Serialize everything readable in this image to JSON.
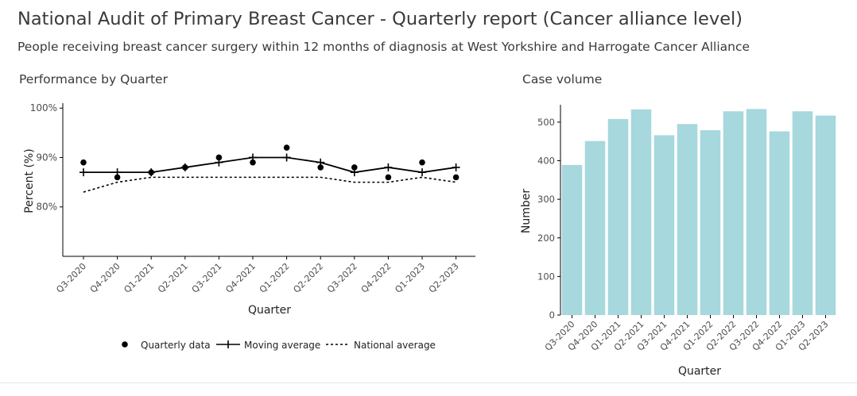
{
  "header": {
    "title": "National Audit of Primary Breast Cancer - Quarterly report (Cancer alliance level)",
    "subtitle": "People receiving breast cancer surgery within 12 months of diagnosis at West Yorkshire and Harrogate Cancer Alliance"
  },
  "colors": {
    "bar_fill": "#a6d8de",
    "line": "#000000",
    "axis": "#000000"
  },
  "chart_data": [
    {
      "type": "line",
      "title": "Performance by Quarter",
      "xlabel": "Quarter",
      "ylabel": "Percent (%)",
      "categories": [
        "Q3-2020",
        "Q4-2020",
        "Q1-2021",
        "Q2-2021",
        "Q3-2021",
        "Q4-2021",
        "Q1-2022",
        "Q2-2022",
        "Q3-2022",
        "Q4-2022",
        "Q1-2023",
        "Q2-2023"
      ],
      "ylim": [
        70,
        101
      ],
      "yticks": [
        80,
        90,
        100
      ],
      "ytick_labels": [
        "80%",
        "90%",
        "100%"
      ],
      "grid": false,
      "legend_position": "bottom",
      "series": [
        {
          "name": "Quarterly data",
          "style": "points",
          "values": [
            89,
            86,
            87,
            88,
            90,
            89,
            92,
            88,
            88,
            86,
            89,
            86
          ]
        },
        {
          "name": "Moving average",
          "style": "line-cross",
          "values": [
            87,
            87,
            87,
            88,
            89,
            90,
            90,
            89,
            87,
            88,
            87,
            88
          ]
        },
        {
          "name": "National average",
          "style": "dashed",
          "values": [
            83,
            85,
            86,
            86,
            86,
            86,
            86,
            86,
            85,
            85,
            86,
            85
          ]
        }
      ]
    },
    {
      "type": "bar",
      "title": "Case volume",
      "xlabel": "Quarter",
      "ylabel": "Number",
      "categories": [
        "Q3-2020",
        "Q4-2020",
        "Q1-2021",
        "Q2-2021",
        "Q3-2021",
        "Q4-2021",
        "Q1-2022",
        "Q2-2022",
        "Q3-2022",
        "Q4-2022",
        "Q1-2023",
        "Q2-2023"
      ],
      "values": [
        389,
        451,
        508,
        533,
        466,
        495,
        479,
        528,
        534,
        476,
        528,
        517
      ],
      "ylim": [
        0,
        545
      ],
      "yticks": [
        0,
        100,
        200,
        300,
        400,
        500
      ],
      "grid": false
    }
  ]
}
